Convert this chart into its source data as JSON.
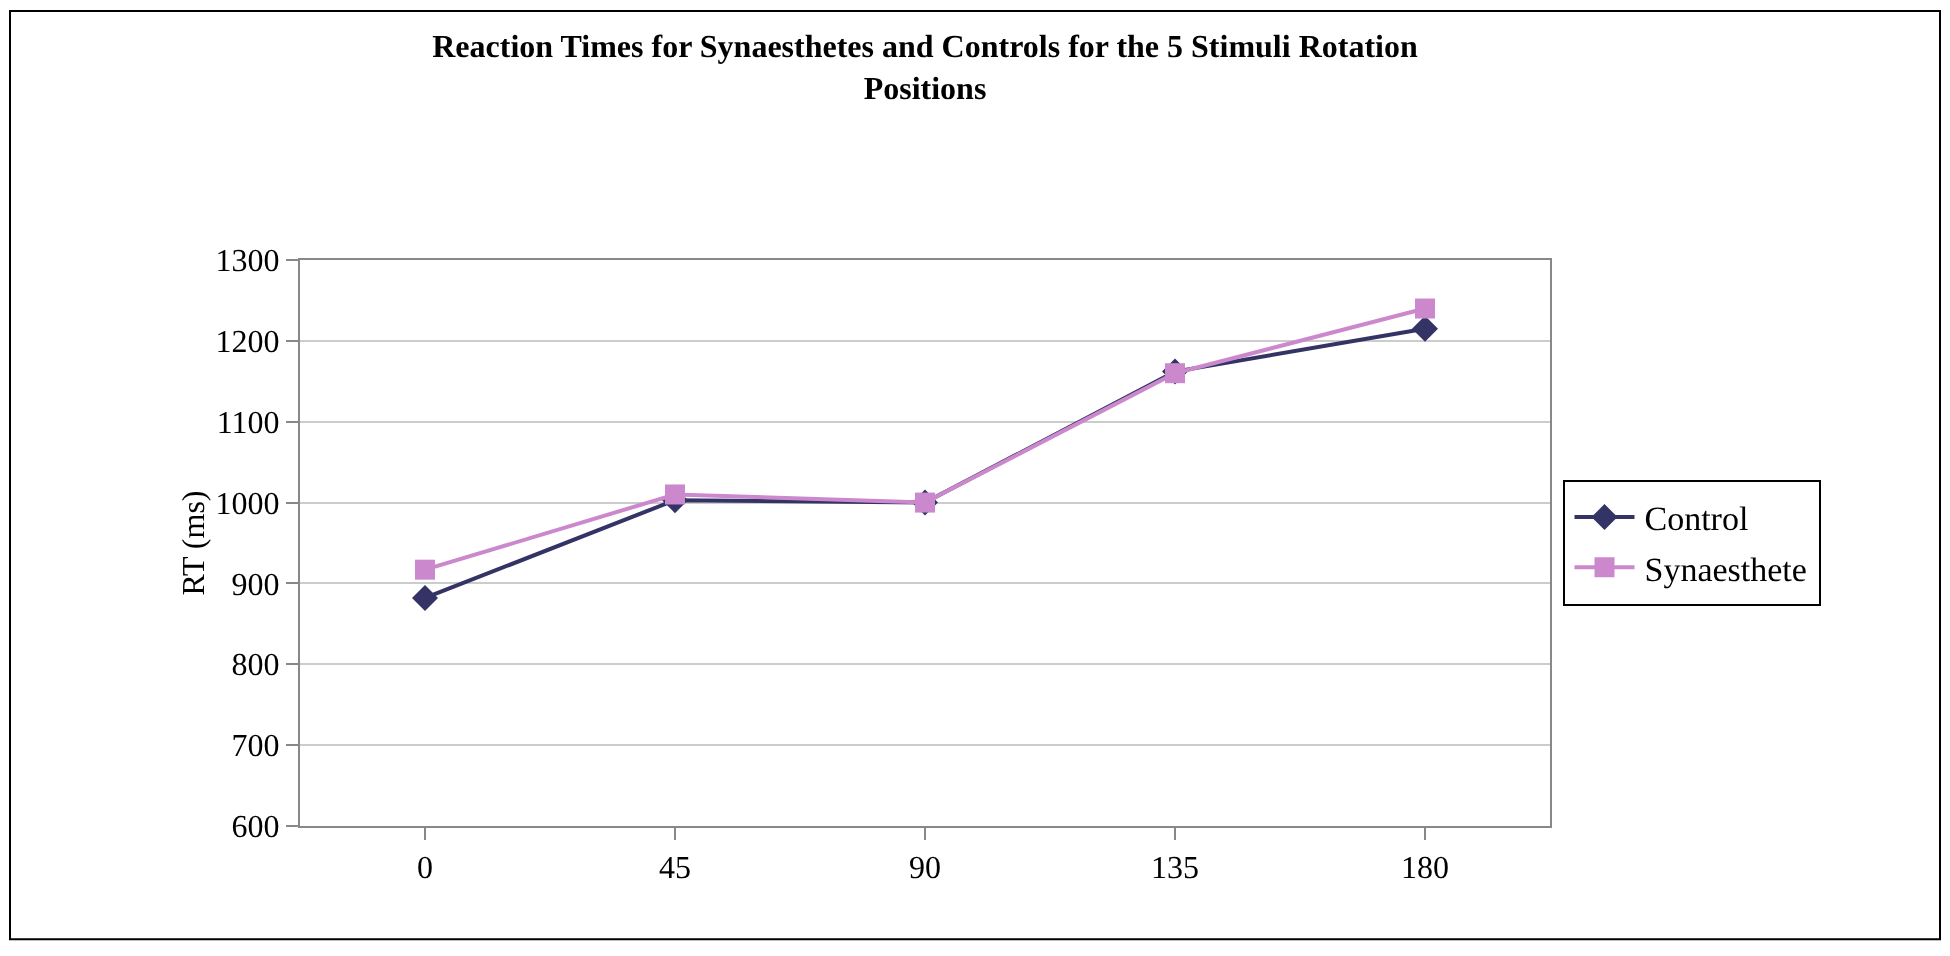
{
  "chart_data": {
    "type": "line",
    "title": "Reaction Times for Synaesthetes and Controls for the 5 Stimuli Rotation Positions",
    "ylabel": "RT (ms)",
    "categories": [
      "0",
      "45",
      "90",
      "135",
      "180"
    ],
    "series": [
      {
        "name": "Control",
        "color": "#333366",
        "marker": "diamond",
        "values": [
          882,
          1003,
          1000,
          1162,
          1215
        ]
      },
      {
        "name": "Synaesthete",
        "color": "#cc88cc",
        "marker": "square",
        "values": [
          917,
          1010,
          1000,
          1160,
          1240
        ]
      }
    ],
    "ylim": [
      600,
      1300
    ],
    "yticks": [
      600,
      700,
      800,
      900,
      1000,
      1100,
      1200,
      1300
    ],
    "grid": "y",
    "legend": "right"
  }
}
